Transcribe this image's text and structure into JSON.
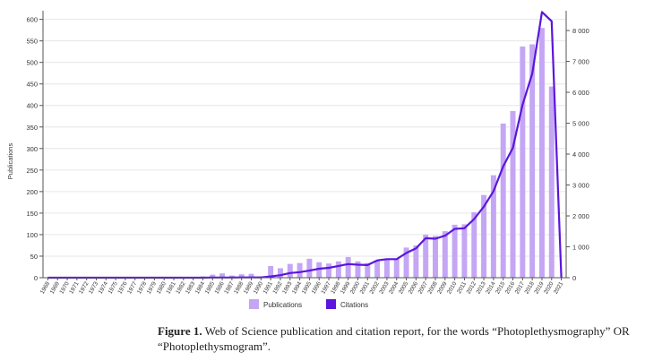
{
  "chart_data": {
    "type": "bar",
    "categories": [
      "1968",
      "1969",
      "1970",
      "1971",
      "1972",
      "1973",
      "1974",
      "1975",
      "1976",
      "1977",
      "1978",
      "1979",
      "1980",
      "1981",
      "1982",
      "1983",
      "1984",
      "1985",
      "1986",
      "1987",
      "1988",
      "1989",
      "1990",
      "1991",
      "1992",
      "1993",
      "1994",
      "1995",
      "1996",
      "1997",
      "1998",
      "1999",
      "2000",
      "2001",
      "2002",
      "2003",
      "2004",
      "2005",
      "2006",
      "2007",
      "2008",
      "2009",
      "2010",
      "2011",
      "2012",
      "2013",
      "2014",
      "2015",
      "2016",
      "2017",
      "2018",
      "2019",
      "2020",
      "2021"
    ],
    "series": [
      {
        "name": "Publications",
        "type": "bar",
        "axis": "left",
        "values": [
          1,
          1,
          1,
          1,
          1,
          1,
          2,
          1,
          1,
          1,
          1,
          2,
          2,
          2,
          2,
          2,
          3,
          7,
          10,
          5,
          8,
          9,
          3,
          27,
          22,
          32,
          34,
          44,
          36,
          33,
          38,
          48,
          38,
          34,
          40,
          42,
          44,
          70,
          75,
          100,
          97,
          108,
          123,
          124,
          152,
          192,
          238,
          358,
          387,
          537,
          542,
          580,
          444,
          0
        ]
      },
      {
        "name": "Citations",
        "type": "line",
        "axis": "right",
        "values": [
          0,
          0,
          0,
          0,
          0,
          0,
          0,
          0,
          0,
          0,
          0,
          0,
          0,
          0,
          0,
          0,
          0,
          5,
          5,
          5,
          10,
          10,
          10,
          40,
          80,
          150,
          180,
          230,
          290,
          320,
          380,
          440,
          420,
          410,
          560,
          600,
          600,
          800,
          950,
          1280,
          1260,
          1360,
          1580,
          1600,
          1900,
          2300,
          2800,
          3600,
          4200,
          5600,
          6600,
          8600,
          8300,
          0
        ]
      }
    ],
    "ylabel": "Publications",
    "ylim": [
      0,
      620
    ],
    "yticks": [
      0,
      50,
      100,
      150,
      200,
      250,
      300,
      350,
      400,
      450,
      500,
      550,
      600
    ],
    "y2lim": [
      0,
      8640
    ],
    "y2ticks": [
      0,
      1000,
      2000,
      3000,
      4000,
      5000,
      6000,
      7000,
      8000
    ],
    "y2ticklabels": [
      "0",
      "1 000",
      "2 000",
      "3 000",
      "4 000",
      "5 000",
      "6 000",
      "7 000",
      "8 000"
    ],
    "grid": "horizontal",
    "legend": "bottom-center",
    "colors": {
      "bar": "#c4a6f5",
      "line": "#5a16dd",
      "axis": "#555555",
      "grid": "#e6e6e6"
    }
  },
  "caption": {
    "label": "Figure 1.",
    "text": " Web of Science publication and citation report, for the words “Photoplethysmography” OR “Photoplethysmogram”."
  }
}
